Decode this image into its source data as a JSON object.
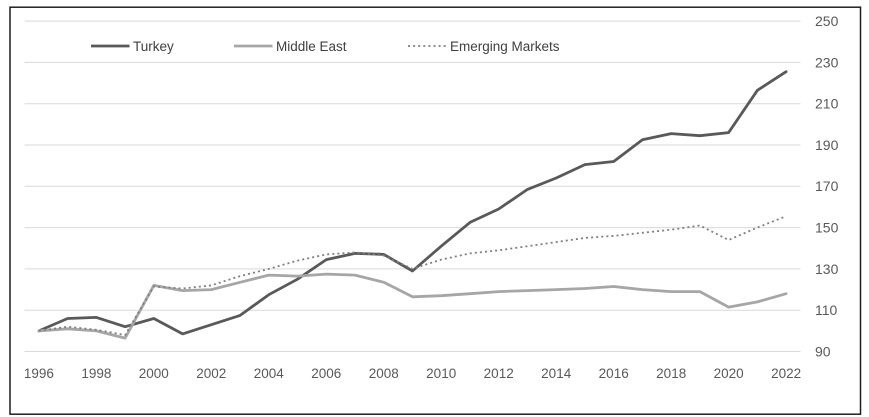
{
  "chart_data": {
    "type": "line",
    "title": "",
    "xlabel": "",
    "ylabel": "",
    "x": [
      1996,
      1997,
      1998,
      1999,
      2000,
      2001,
      2002,
      2003,
      2004,
      2005,
      2006,
      2007,
      2008,
      2009,
      2010,
      2011,
      2012,
      2013,
      2014,
      2015,
      2016,
      2017,
      2018,
      2019,
      2020,
      2021,
      2022
    ],
    "x_tick_labels": [
      "1996",
      "1998",
      "2000",
      "2002",
      "2004",
      "2006",
      "2008",
      "2010",
      "2012",
      "2014",
      "2016",
      "2018",
      "2020",
      "2022"
    ],
    "y_tick_labels": [
      "90",
      "110",
      "130",
      "150",
      "170",
      "190",
      "210",
      "230",
      "250"
    ],
    "ylim": [
      90,
      250
    ],
    "ytick_step": 20,
    "y_axis_side": "right",
    "grid": "horizontal",
    "legend_position": "top",
    "series": [
      {
        "name": "Turkey",
        "style": "solid",
        "color": "#595959",
        "width": 2.8,
        "values": [
          100,
          106,
          106.5,
          102,
          106,
          98.5,
          103,
          107.5,
          117.5,
          125,
          134.5,
          137.5,
          137,
          129,
          141,
          152.5,
          159,
          168.5,
          174,
          180.5,
          182,
          192.5,
          195.5,
          194.5,
          196,
          216.5,
          225.5
        ]
      },
      {
        "name": "Middle East",
        "style": "solid",
        "color": "#a6a6a6",
        "width": 2.8,
        "values": [
          100,
          101,
          100,
          96.5,
          122,
          119.5,
          120,
          123.5,
          127,
          126.5,
          127.5,
          127,
          123.5,
          116.5,
          117,
          118,
          119,
          119.5,
          120,
          120.5,
          121.5,
          120,
          119,
          119,
          111.5,
          114,
          118
        ]
      },
      {
        "name": "Emerging Markets",
        "style": "dotted",
        "color": "#7f7f7f",
        "width": 1.8,
        "values": [
          100,
          102,
          100.5,
          98,
          121.5,
          120.5,
          122,
          126.5,
          130,
          134,
          137,
          138,
          136.5,
          130,
          134.5,
          137.5,
          139,
          141,
          143,
          145,
          146,
          147.5,
          149,
          151,
          144,
          150,
          155.5
        ]
      }
    ]
  },
  "colors": {
    "background": "#ffffff",
    "gridline": "#d9d9d9",
    "axis_line": "#d9d9d9",
    "axis_text": "#595959",
    "legend_text": "#404040",
    "border": "#1f1f1f"
  }
}
